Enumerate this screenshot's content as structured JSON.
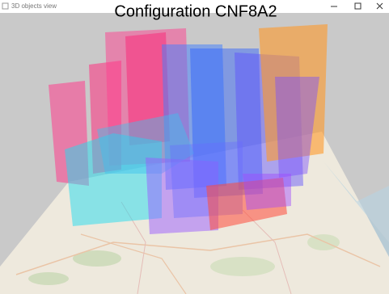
{
  "window": {
    "title": "3D objects view"
  },
  "scene": {
    "title": "Configuration CNF8A2"
  }
}
